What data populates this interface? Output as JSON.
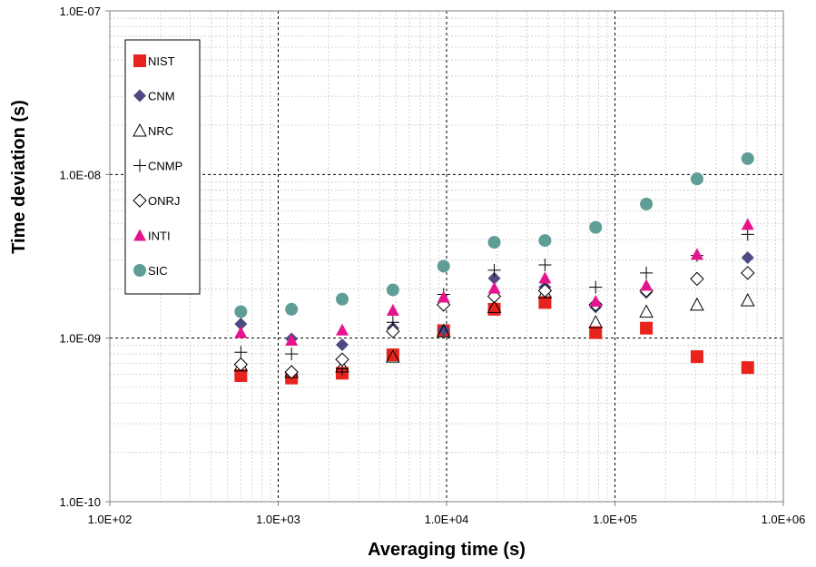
{
  "chart_data": {
    "type": "scatter",
    "title": "",
    "xlabel": "Averaging time (s)",
    "ylabel": "Time deviation (s)",
    "x_scale": "log",
    "y_scale": "log",
    "xlim": [
      100,
      1000000
    ],
    "ylim": [
      1e-10,
      1e-07
    ],
    "x_ticks": [
      "1.0E+02",
      "1.0E+03",
      "1.0E+04",
      "1.0E+05",
      "1.0E+06"
    ],
    "y_ticks": [
      "1.0E-10",
      "1.0E-09",
      "1.0E-08",
      "1.0E-07"
    ],
    "grid": true,
    "legend_position": "top-left",
    "x": [
      600,
      1200,
      2400,
      4800,
      9600,
      19200,
      38400,
      76800,
      153600,
      307200,
      614400
    ],
    "series": [
      {
        "name": "NIST",
        "marker": "square",
        "color": "#e8231e",
        "values": [
          5.9e-10,
          5.7e-10,
          6.1e-10,
          7.9e-10,
          1.11e-09,
          1.5e-09,
          1.65e-09,
          1.08e-09,
          1.15e-09,
          7.7e-10,
          6.6e-10
        ]
      },
      {
        "name": "CNM",
        "marker": "diamond",
        "color": "#4c4a80",
        "values": [
          1.22e-09,
          9.9e-10,
          9.1e-10,
          1.15e-09,
          1.12e-09,
          2.32e-09,
          2.05e-09,
          1.55e-09,
          1.9e-09,
          2.32e-09,
          3.1e-09
        ]
      },
      {
        "name": "NRC",
        "marker": "open-triangle",
        "color": "#000000",
        "values": [
          6.8e-10,
          6.2e-10,
          6.7e-10,
          7.7e-10,
          1.1e-09,
          1.55e-09,
          1.9e-09,
          1.25e-09,
          1.45e-09,
          1.6e-09,
          1.7e-09
        ]
      },
      {
        "name": "CNMP",
        "marker": "plus",
        "color": "#000000",
        "values": [
          8.2e-10,
          8e-10,
          6.5e-10,
          1.25e-09,
          1.85e-09,
          2.6e-09,
          2.8e-09,
          2.05e-09,
          2.5e-09,
          3.2e-09,
          4.3e-09
        ]
      },
      {
        "name": "ONRJ",
        "marker": "open-diamond",
        "color": "#000000",
        "values": [
          6.9e-10,
          6.2e-10,
          7.4e-10,
          1.1e-09,
          1.6e-09,
          1.8e-09,
          1.95e-09,
          1.6e-09,
          1.95e-09,
          2.3e-09,
          2.5e-09
        ]
      },
      {
        "name": "INTI",
        "marker": "triangle",
        "color": "#e6148c",
        "values": [
          1.08e-09,
          9.7e-10,
          1.12e-09,
          1.48e-09,
          1.78e-09,
          2.02e-09,
          2.33e-09,
          1.68e-09,
          2.1e-09,
          3.25e-09,
          4.95e-09
        ]
      },
      {
        "name": "SIC",
        "marker": "circle",
        "color": "#5f9e96",
        "values": [
          1.45e-09,
          1.5e-09,
          1.73e-09,
          1.97e-09,
          2.75e-09,
          3.85e-09,
          3.95e-09,
          4.75e-09,
          6.6e-09,
          9.4e-09,
          1.25e-08
        ]
      }
    ]
  }
}
